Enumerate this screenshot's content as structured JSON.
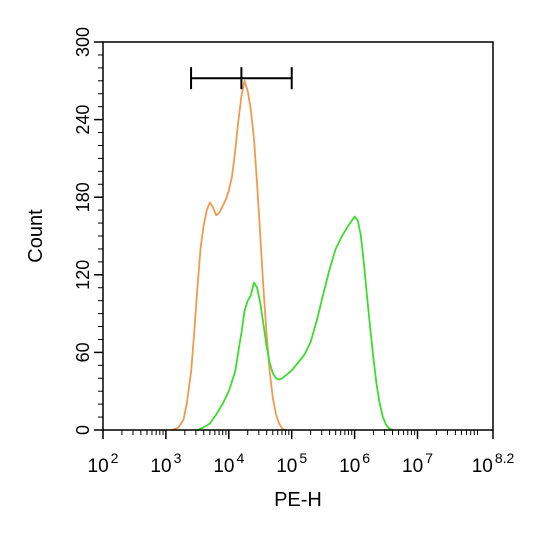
{
  "chart_data": {
    "type": "line",
    "title": "",
    "xlabel": "PE-H",
    "ylabel": "Count",
    "x_scale": "log",
    "xlim": [
      100,
      158489319
    ],
    "ylim": [
      0,
      300
    ],
    "x_ticks": [
      {
        "value": 100,
        "base": "10",
        "exp": "2"
      },
      {
        "value": 1000,
        "base": "10",
        "exp": "3"
      },
      {
        "value": 10000,
        "base": "10",
        "exp": "4"
      },
      {
        "value": 100000,
        "base": "10",
        "exp": "5"
      },
      {
        "value": 1000000,
        "base": "10",
        "exp": "6"
      },
      {
        "value": 10000000,
        "base": "10",
        "exp": "7"
      },
      {
        "value": 158489319,
        "base": "10",
        "exp": "8.2"
      }
    ],
    "y_ticks": [
      0,
      60,
      120,
      180,
      240,
      300
    ],
    "grid": false,
    "legend": "none",
    "gate": {
      "x_start": 2512,
      "x_end": 100000,
      "x_mid": 15849,
      "y": 272
    },
    "series": [
      {
        "color": "#ef9a4f",
        "points": [
          [
            1259,
            0
          ],
          [
            1585,
            2
          ],
          [
            1905,
            8
          ],
          [
            2138,
            20
          ],
          [
            2512,
            45
          ],
          [
            2818,
            75
          ],
          [
            3162,
            110
          ],
          [
            3548,
            140
          ],
          [
            3981,
            158
          ],
          [
            4467,
            170
          ],
          [
            5012,
            176
          ],
          [
            5623,
            172
          ],
          [
            6310,
            166
          ],
          [
            7079,
            168
          ],
          [
            7943,
            173
          ],
          [
            8913,
            178
          ],
          [
            10000,
            185
          ],
          [
            11220,
            196
          ],
          [
            12589,
            215
          ],
          [
            14125,
            238
          ],
          [
            15849,
            258
          ],
          [
            17783,
            270
          ],
          [
            19953,
            262
          ],
          [
            22387,
            248
          ],
          [
            25119,
            225
          ],
          [
            28184,
            190
          ],
          [
            31623,
            150
          ],
          [
            35481,
            110
          ],
          [
            39811,
            75
          ],
          [
            44668,
            45
          ],
          [
            50119,
            25
          ],
          [
            56234,
            12
          ],
          [
            63096,
            5
          ],
          [
            70795,
            1
          ],
          [
            79433,
            0
          ]
        ]
      },
      {
        "color": "#3ddc2f",
        "points": [
          [
            3162,
            0
          ],
          [
            3981,
            2
          ],
          [
            5012,
            5
          ],
          [
            6310,
            12
          ],
          [
            7943,
            20
          ],
          [
            10000,
            30
          ],
          [
            12589,
            45
          ],
          [
            14125,
            60
          ],
          [
            15849,
            75
          ],
          [
            17783,
            92
          ],
          [
            19953,
            100
          ],
          [
            22387,
            104
          ],
          [
            25119,
            114
          ],
          [
            28184,
            110
          ],
          [
            31623,
            98
          ],
          [
            35481,
            82
          ],
          [
            39811,
            65
          ],
          [
            44668,
            52
          ],
          [
            50119,
            44
          ],
          [
            56234,
            40
          ],
          [
            63096,
            39
          ],
          [
            70795,
            40
          ],
          [
            79433,
            42
          ],
          [
            89125,
            44
          ],
          [
            100000,
            46
          ],
          [
            125893,
            52
          ],
          [
            158489,
            58
          ],
          [
            199526,
            68
          ],
          [
            251189,
            85
          ],
          [
            316228,
            105
          ],
          [
            398107,
            124
          ],
          [
            501187,
            140
          ],
          [
            630957,
            150
          ],
          [
            794328,
            158
          ],
          [
            1000000,
            165
          ],
          [
            1122018,
            162
          ],
          [
            1258925,
            150
          ],
          [
            1412538,
            128
          ],
          [
            1584893,
            102
          ],
          [
            1778279,
            78
          ],
          [
            1995262,
            55
          ],
          [
            2238721,
            35
          ],
          [
            2511886,
            20
          ],
          [
            2818383,
            10
          ],
          [
            3162278,
            4
          ],
          [
            3548134,
            1
          ],
          [
            3981072,
            0
          ]
        ]
      }
    ]
  }
}
